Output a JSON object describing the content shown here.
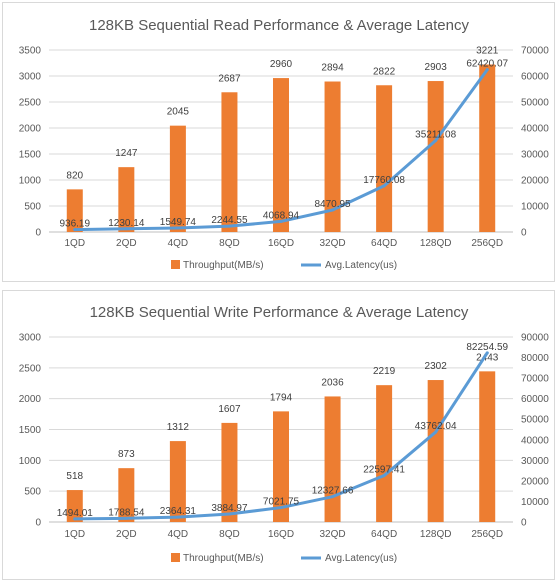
{
  "charts": [
    {
      "title": "128KB Sequential Read Performance & Average Latency",
      "legend": {
        "bar_label": "Throughput(MB/s)",
        "line_label": "Avg.Latency(us)"
      },
      "left_ticks": [
        "0",
        "500",
        "1000",
        "1500",
        "2000",
        "2500",
        "3000",
        "3500"
      ],
      "right_ticks": [
        "0",
        "10000",
        "20000",
        "30000",
        "40000",
        "50000",
        "60000",
        "70000"
      ]
    },
    {
      "title": "128KB Sequential Write Performance & Average Latency",
      "legend": {
        "bar_label": "Throughput(MB/s)",
        "line_label": "Avg.Latency(us)"
      },
      "left_ticks": [
        "0",
        "500",
        "1000",
        "1500",
        "2000",
        "2500",
        "3000"
      ],
      "right_ticks": [
        "0",
        "10000",
        "20000",
        "30000",
        "40000",
        "50000",
        "60000",
        "70000",
        "80000",
        "90000"
      ]
    }
  ],
  "chart_data": [
    {
      "type": "bar",
      "title": "128KB Sequential Read Performance & Average Latency",
      "categories": [
        "1QD",
        "2QD",
        "4QD",
        "8QD",
        "16QD",
        "32QD",
        "64QD",
        "128QD",
        "256QD"
      ],
      "series": [
        {
          "name": "Throughput(MB/s)",
          "type": "bar",
          "axis": "left",
          "values": [
            820,
            1247,
            2045,
            2687,
            2960,
            2894,
            2822,
            2903,
            3221
          ],
          "labels": [
            "820",
            "1247",
            "2045",
            "2687",
            "2960",
            "2894",
            "2822",
            "2903",
            "3221"
          ]
        },
        {
          "name": "Avg.Latency(us)",
          "type": "line",
          "axis": "right",
          "values": [
            936.19,
            1230.14,
            1549.74,
            2244.55,
            4068.94,
            8470.95,
            17760.08,
            35211.08,
            62420.07
          ],
          "labels": [
            "936.19",
            "1230.14",
            "1549.74",
            "2244.55",
            "4068.94",
            "8470.95",
            "17760.08",
            "35211.08",
            "62420.07"
          ]
        }
      ],
      "ylim": [
        0,
        3500
      ],
      "y2lim": [
        0,
        70000
      ],
      "grid": true,
      "legend_position": "bottom",
      "colors": {
        "bar": "#ED7D31",
        "line": "#5B9BD5"
      }
    },
    {
      "type": "bar",
      "title": "128KB Sequential Write Performance & Average Latency",
      "categories": [
        "1QD",
        "2QD",
        "4QD",
        "8QD",
        "16QD",
        "32QD",
        "64QD",
        "128QD",
        "256QD"
      ],
      "series": [
        {
          "name": "Throughput(MB/s)",
          "type": "bar",
          "axis": "left",
          "values": [
            518,
            873,
            1312,
            1607,
            1794,
            2036,
            2219,
            2302,
            2443
          ],
          "labels": [
            "518",
            "873",
            "1312",
            "1607",
            "1794",
            "2036",
            "2219",
            "2302",
            "2443"
          ]
        },
        {
          "name": "Avg.Latency(us)",
          "type": "line",
          "axis": "right",
          "values": [
            1494.01,
            1788.54,
            2364.31,
            3884.97,
            7021.75,
            12327.66,
            22597.41,
            43762.04,
            82254.59
          ],
          "labels": [
            "1494.01",
            "1788.54",
            "2364.31",
            "3884.97",
            "7021.75",
            "12327.66",
            "22597.41",
            "43762.04",
            "82254.59"
          ]
        }
      ],
      "ylim": [
        0,
        3000
      ],
      "y2lim": [
        0,
        90000
      ],
      "grid": true,
      "legend_position": "bottom",
      "colors": {
        "bar": "#ED7D31",
        "line": "#5B9BD5"
      }
    }
  ]
}
